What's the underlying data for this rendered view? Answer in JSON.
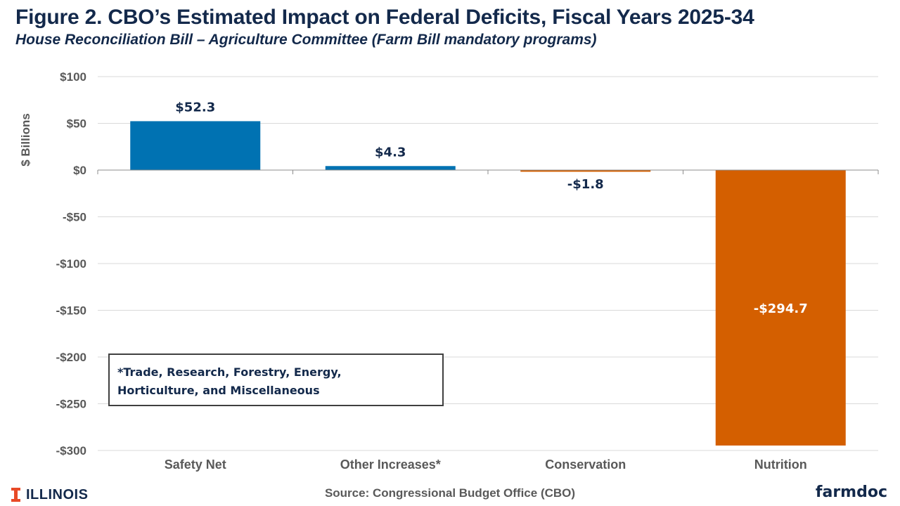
{
  "header": {
    "title": "Figure 2. CBO’s Estimated Impact on Federal Deficits, Fiscal Years 2025-34",
    "subtitle": "House Reconciliation Bill – Agriculture Committee (Farm Bill mandatory programs)"
  },
  "chart_data": {
    "type": "bar",
    "categories": [
      "Safety Net",
      "Other Increases*",
      "Conservation",
      "Nutrition"
    ],
    "values": [
      52.3,
      4.3,
      -1.8,
      -294.7
    ],
    "data_labels": [
      "$52.3",
      "$4.3",
      "-$1.8",
      "-$294.7"
    ],
    "bar_colors": [
      "#0072b2",
      "#0072b2",
      "#d45f00",
      "#d45f00"
    ],
    "ylabel": "$ Billions",
    "ylim": [
      -300,
      100
    ],
    "yticks": [
      100,
      50,
      0,
      -50,
      -100,
      -150,
      -200,
      -250,
      -300
    ],
    "ytick_labels": [
      "$100",
      "$50",
      "$0",
      "-$50",
      "-$100",
      "-$150",
      "-$200",
      "-$250",
      "-$300"
    ],
    "grid": true,
    "legend": "none"
  },
  "note": {
    "line1": "*Trade, Research, Forestry, Energy,",
    "line2": "Horticulture, and Miscellaneous"
  },
  "footer": {
    "source": "Source: Congressional Budget Office (CBO)",
    "left_logo": "ILLINOIS",
    "right_logo": "farmdoc"
  },
  "colors": {
    "title": "#13294b",
    "increase": "#0072b2",
    "decrease": "#d45f00",
    "illinois_orange": "#e84a27"
  }
}
